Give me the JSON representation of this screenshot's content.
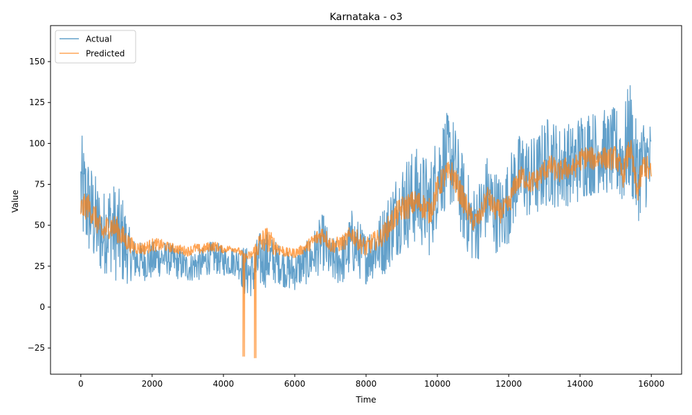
{
  "chart_data": {
    "type": "line",
    "title": "Karnataka - o3",
    "xlabel": "Time",
    "ylabel": "Value",
    "xlim": [
      -850,
      16850
    ],
    "ylim": [
      -41,
      172
    ],
    "xticks": [
      0,
      2000,
      4000,
      6000,
      8000,
      10000,
      12000,
      14000,
      16000
    ],
    "xtick_labels": [
      "0",
      "2000",
      "4000",
      "6000",
      "8000",
      "10000",
      "12000",
      "14000",
      "16000"
    ],
    "yticks": [
      -25,
      0,
      25,
      50,
      75,
      100,
      125,
      150
    ],
    "ytick_labels": [
      "−25",
      "0",
      "25",
      "50",
      "75",
      "100",
      "125",
      "150"
    ],
    "grid": false,
    "legend_position": "top-left",
    "series": [
      {
        "name": "Actual",
        "color": "#1f77b4",
        "opacity": 0.7,
        "x": [
          0,
          200,
          400,
          600,
          800,
          1000,
          1200,
          1400,
          1600,
          1800,
          2000,
          2200,
          2400,
          2600,
          2800,
          3000,
          3200,
          3400,
          3600,
          3800,
          4000,
          4200,
          4400,
          4600,
          4800,
          5000,
          5200,
          5400,
          5600,
          5800,
          6000,
          6200,
          6400,
          6600,
          6800,
          7000,
          7200,
          7400,
          7600,
          7800,
          8000,
          8200,
          8400,
          8600,
          8800,
          9000,
          9200,
          9400,
          9600,
          9800,
          10000,
          10200,
          10400,
          10600,
          10800,
          11000,
          11200,
          11400,
          11600,
          11800,
          12000,
          12200,
          12400,
          12600,
          12800,
          13000,
          13200,
          13400,
          13600,
          13800,
          14000,
          14200,
          14400,
          14600,
          14800,
          15000,
          15200,
          15400,
          15600,
          15800,
          16000
        ],
        "y": [
          72,
          62,
          52,
          44,
          50,
          45,
          40,
          30,
          28,
          28,
          28,
          30,
          30,
          28,
          26,
          24,
          26,
          26,
          30,
          30,
          28,
          28,
          28,
          22,
          20,
          28,
          30,
          28,
          26,
          22,
          22,
          25,
          28,
          34,
          40,
          28,
          28,
          30,
          40,
          35,
          30,
          35,
          38,
          45,
          55,
          62,
          65,
          68,
          65,
          60,
          80,
          88,
          90,
          75,
          60,
          50,
          55,
          68,
          60,
          55,
          65,
          78,
          82,
          78,
          80,
          88,
          90,
          85,
          88,
          86,
          92,
          95,
          94,
          96,
          94,
          95,
          90,
          105,
          80,
          90,
          85
        ],
        "band": [
          35,
          32,
          30,
          26,
          28,
          30,
          28,
          14,
          12,
          12,
          12,
          12,
          10,
          10,
          10,
          9,
          10,
          10,
          10,
          10,
          9,
          9,
          9,
          16,
          14,
          18,
          18,
          14,
          12,
          12,
          12,
          12,
          14,
          16,
          18,
          14,
          15,
          16,
          20,
          18,
          16,
          18,
          20,
          24,
          26,
          28,
          30,
          30,
          30,
          30,
          30,
          30,
          30,
          28,
          26,
          24,
          25,
          26,
          26,
          25,
          26,
          26,
          26,
          26,
          26,
          28,
          28,
          26,
          26,
          26,
          28,
          28,
          26,
          26,
          26,
          28,
          30,
          35,
          30,
          28,
          30
        ]
      },
      {
        "name": "Predicted",
        "color": "#ff7f0e",
        "opacity": 0.7,
        "x": [
          0,
          200,
          400,
          600,
          800,
          1000,
          1200,
          1400,
          1600,
          1800,
          2000,
          2200,
          2400,
          2600,
          2800,
          3000,
          3200,
          3400,
          3600,
          3800,
          4000,
          4200,
          4400,
          4600,
          4800,
          5000,
          5200,
          5400,
          5600,
          5800,
          6000,
          6200,
          6400,
          6600,
          6800,
          7000,
          7200,
          7400,
          7600,
          7800,
          8000,
          8200,
          8400,
          8600,
          8800,
          9000,
          9200,
          9400,
          9600,
          9800,
          10000,
          10200,
          10400,
          10600,
          10800,
          11000,
          11200,
          11400,
          11600,
          11800,
          12000,
          12200,
          12400,
          12600,
          12800,
          13000,
          13200,
          13400,
          13600,
          13800,
          14000,
          14200,
          14400,
          14600,
          14800,
          15000,
          15200,
          15400,
          15600,
          15800,
          16000
        ],
        "y": [
          60,
          62,
          55,
          45,
          50,
          48,
          42,
          38,
          36,
          36,
          38,
          38,
          37,
          36,
          35,
          34,
          36,
          35,
          37,
          37,
          35,
          36,
          35,
          30,
          32,
          38,
          42,
          38,
          35,
          33,
          33,
          35,
          38,
          42,
          45,
          38,
          38,
          40,
          45,
          40,
          36,
          40,
          42,
          48,
          55,
          60,
          62,
          64,
          62,
          58,
          72,
          80,
          82,
          72,
          62,
          52,
          55,
          68,
          60,
          58,
          62,
          76,
          80,
          76,
          78,
          84,
          86,
          82,
          85,
          84,
          90,
          92,
          90,
          92,
          90,
          92,
          80,
          98,
          70,
          88,
          80
        ],
        "band": [
          8,
          8,
          8,
          8,
          8,
          8,
          7,
          5,
          4,
          4,
          4,
          4,
          3,
          3,
          3,
          3,
          3,
          3,
          3,
          3,
          2,
          2,
          2,
          3,
          3,
          8,
          8,
          6,
          4,
          3,
          3,
          3,
          4,
          5,
          6,
          5,
          5,
          5,
          6,
          6,
          6,
          6,
          6,
          7,
          8,
          8,
          8,
          8,
          8,
          8,
          8,
          8,
          8,
          8,
          8,
          6,
          6,
          7,
          7,
          7,
          7,
          7,
          7,
          7,
          7,
          7,
          7,
          7,
          7,
          7,
          7,
          7,
          7,
          7,
          7,
          7,
          8,
          8,
          8,
          8,
          8
        ],
        "spikes": [
          {
            "x": 4550,
            "y": -30
          },
          {
            "x": 4870,
            "y": -31
          }
        ]
      }
    ]
  }
}
